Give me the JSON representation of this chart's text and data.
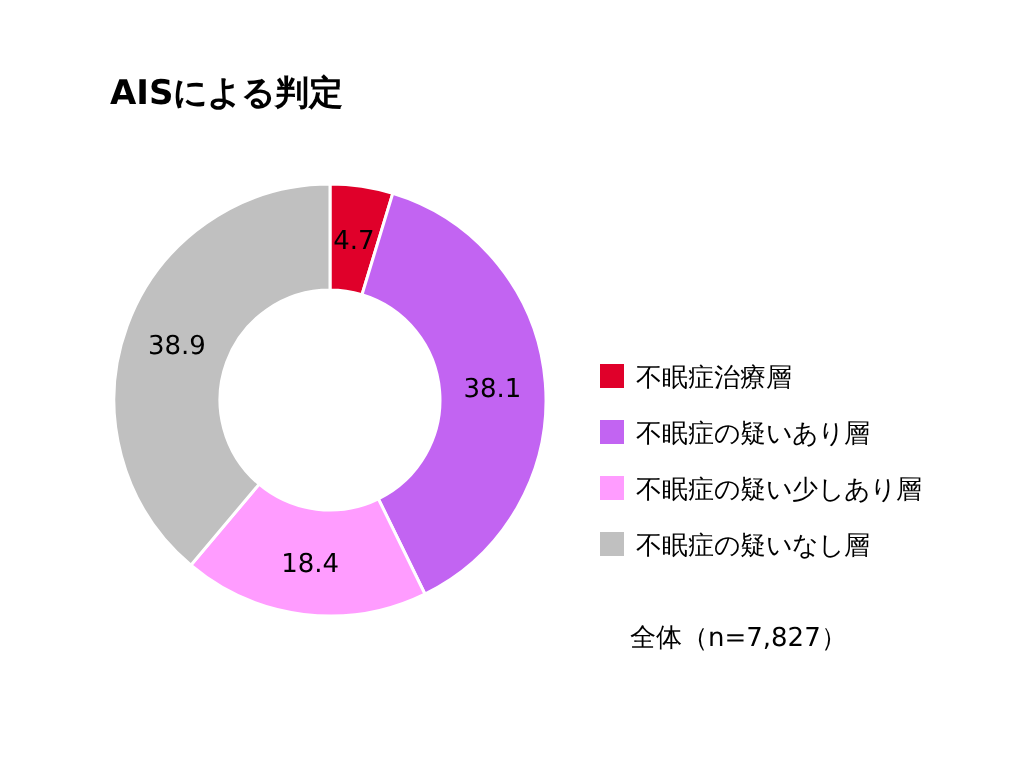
{
  "chart_data": {
    "type": "donut",
    "title": "AISによる判定",
    "categories": [
      "不眠症治療層",
      "不眠症の疑いあり層",
      "不眠症の疑い少しあり層",
      "不眠症の疑いなし層"
    ],
    "values": [
      4.7,
      38.1,
      18.4,
      38.9
    ],
    "colors": [
      "#e0002a",
      "#c264f2",
      "#ff9cff",
      "#c0c0c0"
    ],
    "data_labels": true,
    "legend": "right",
    "annotations": [
      "全体（n=7,827）"
    ]
  }
}
